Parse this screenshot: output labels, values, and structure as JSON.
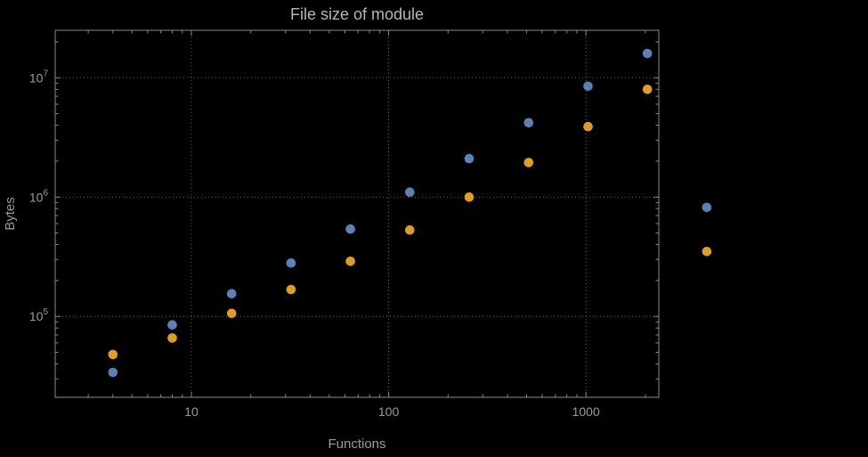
{
  "colors": {
    "background": "#000000",
    "frame": "#8a8a8a",
    "grid": "#5e5e5e",
    "tick_text": "#9a9a9a",
    "title_text": "#b5b5b5",
    "series_blue": "#5e81b5",
    "series_orange": "#e19c24"
  },
  "chart_data": {
    "type": "scatter",
    "title": "File size of module",
    "xlabel": "Functions",
    "ylabel": "Bytes",
    "x_scale": "log",
    "y_scale": "log",
    "grid": "dotted-major-decades",
    "legend": "none",
    "xlim": [
      2.04,
      2340
    ],
    "ylim": [
      21000,
      25000000
    ],
    "x": [
      4,
      8,
      16,
      32,
      64,
      128,
      256,
      512,
      1024,
      2048,
      4096
    ],
    "series": [
      {
        "name": "blue",
        "color": "#5e81b5",
        "values": [
          34000,
          85000,
          155000,
          280000,
          540000,
          1100000,
          2100000,
          4200000,
          8500000,
          16000000,
          820000
        ]
      },
      {
        "name": "orange",
        "color": "#e19c24",
        "values": [
          48000,
          66000,
          106000,
          168000,
          290000,
          530000,
          1000000,
          1950000,
          3900000,
          8000000,
          350000
        ]
      }
    ],
    "x_ticks": [
      {
        "value": 10,
        "label": "10"
      },
      {
        "value": 100,
        "label": "100"
      },
      {
        "value": 1000,
        "label": "1000"
      }
    ],
    "y_ticks": [
      {
        "value": 100000,
        "base": "10",
        "exp": "5"
      },
      {
        "value": 1000000,
        "base": "10",
        "exp": "6"
      },
      {
        "value": 10000000,
        "base": "10",
        "exp": "7"
      }
    ]
  }
}
